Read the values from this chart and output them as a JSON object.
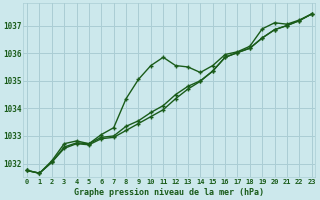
{
  "title": "Graphe pression niveau de la mer (hPa)",
  "background_color": "#cce8ec",
  "grid_color": "#aacdd4",
  "line_color": "#1a5c1a",
  "x_labels": [
    "0",
    "1",
    "2",
    "3",
    "4",
    "5",
    "6",
    "7",
    "8",
    "9",
    "10",
    "11",
    "12",
    "13",
    "14",
    "15",
    "16",
    "17",
    "18",
    "19",
    "20",
    "21",
    "22",
    "23"
  ],
  "ylim": [
    1031.5,
    1037.8
  ],
  "yticks": [
    1032,
    1033,
    1034,
    1035,
    1036,
    1037
  ],
  "series1": [
    1031.75,
    1031.65,
    1032.1,
    1032.72,
    1032.82,
    1032.72,
    1033.05,
    1033.3,
    1034.35,
    1035.05,
    1035.55,
    1035.85,
    1035.55,
    1035.5,
    1035.3,
    1035.55,
    1035.95,
    1036.05,
    1036.25,
    1036.88,
    1037.1,
    1037.05,
    1037.2,
    1037.42
  ],
  "series2": [
    1031.75,
    1031.65,
    1032.05,
    1032.6,
    1032.75,
    1032.72,
    1032.95,
    1033.0,
    1033.35,
    1033.55,
    1033.85,
    1034.1,
    1034.5,
    1034.8,
    1035.0,
    1035.35,
    1035.85,
    1036.02,
    1036.18,
    1036.55,
    1036.85,
    1037.0,
    1037.18,
    1037.42
  ],
  "series3": [
    1031.75,
    1031.65,
    1032.05,
    1032.55,
    1032.72,
    1032.68,
    1032.9,
    1032.95,
    1033.2,
    1033.45,
    1033.7,
    1033.95,
    1034.35,
    1034.7,
    1034.98,
    1035.35,
    1035.85,
    1036.02,
    1036.18,
    1036.55,
    1036.85,
    1037.0,
    1037.18,
    1037.42
  ]
}
